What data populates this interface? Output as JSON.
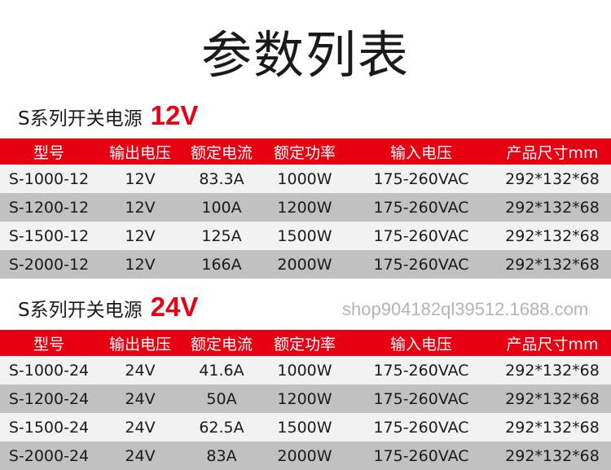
{
  "title": "参数列表",
  "colors": {
    "accent": "#e60012",
    "row_light": "#f2f2f2",
    "row_dark": "#c1c1c1"
  },
  "columns": [
    "型号",
    "输出电压",
    "额定电流",
    "额定功率",
    "输入电压",
    "产品尺寸mm"
  ],
  "sections": [
    {
      "label": "S系列开关电源",
      "voltage": "12V",
      "rows": [
        [
          "S-1000-12",
          "12V",
          "83.3A",
          "1000W",
          "175-260VAC",
          "292*132*68"
        ],
        [
          "S-1200-12",
          "12V",
          "100A",
          "1200W",
          "175-260VAC",
          "292*132*68"
        ],
        [
          "S-1500-12",
          "12V",
          "125A",
          "1500W",
          "175-260VAC",
          "292*132*68"
        ],
        [
          "S-2000-12",
          "12V",
          "166A",
          "2000W",
          "175-260VAC",
          "292*132*68"
        ]
      ]
    },
    {
      "label": "S系列开关电源",
      "voltage": "24V",
      "rows": [
        [
          "S-1000-24",
          "24V",
          "41.6A",
          "1000W",
          "175-260VAC",
          "292*132*68"
        ],
        [
          "S-1200-24",
          "24V",
          "50A",
          "1200W",
          "175-260VAC",
          "292*132*68"
        ],
        [
          "S-1500-24",
          "24V",
          "62.5A",
          "1500W",
          "175-260VAC",
          "292*132*68"
        ],
        [
          "S-2000-24",
          "24V",
          "83A",
          "2000W",
          "175-260VAC",
          "292*132*68"
        ]
      ]
    }
  ],
  "watermark": "shop904182ql39512.1688.com"
}
